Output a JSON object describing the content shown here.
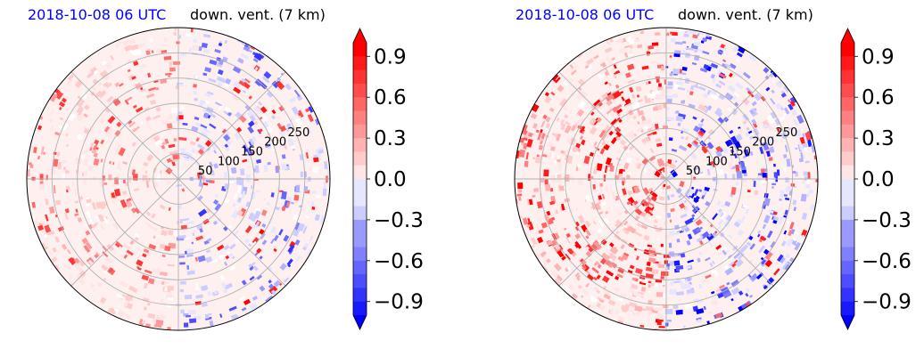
{
  "chart_data": [
    {
      "type": "heatmap",
      "projection": "polar",
      "title_left": "2018-10-08 06 UTC",
      "title_right": "down. vent. (7 km)",
      "radial_ticks": [
        "50",
        "100",
        "150",
        "200",
        "250"
      ],
      "colorbar": {
        "ticks": [
          "0.9",
          "0.6",
          "0.3",
          "0.0",
          "−0.3",
          "−0.6",
          "−0.9"
        ],
        "range": [
          -1.0,
          1.0
        ],
        "colormap": "bwr"
      },
      "seed": 7,
      "intensity": 0.75
    },
    {
      "type": "heatmap",
      "projection": "polar",
      "title_left": "2018-10-08 06 UTC",
      "title_right": "down. vent. (7 km)",
      "radial_ticks": [
        "50",
        "100",
        "150",
        "200",
        "250"
      ],
      "colorbar": {
        "ticks": [
          "0.9",
          "0.6",
          "0.3",
          "0.0",
          "−0.3",
          "−0.6",
          "−0.9"
        ],
        "range": [
          -1.0,
          1.0
        ],
        "colormap": "bwr"
      },
      "seed": 23,
      "intensity": 1.0
    }
  ],
  "colors": {
    "positive": "#ff0000",
    "negative": "#0000ff",
    "zero": "#ffffff",
    "title_date": "#0000ff",
    "grid": "#b0b0b0"
  }
}
